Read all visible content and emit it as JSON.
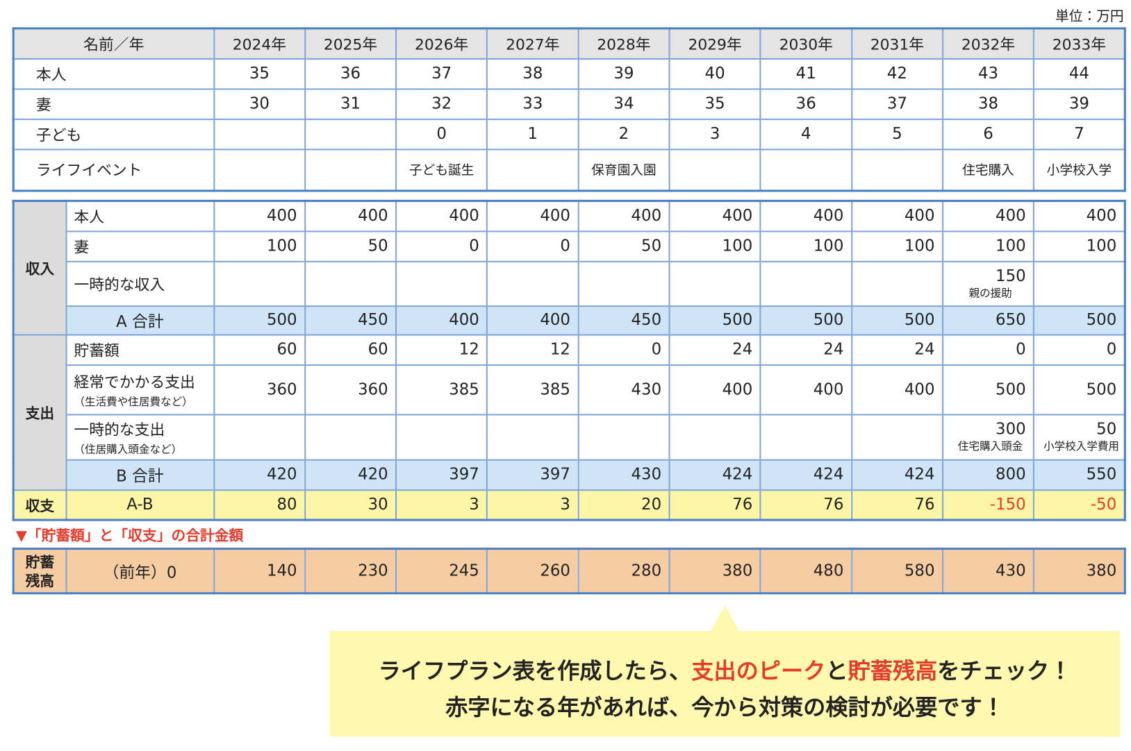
{
  "unit": "単位：万円",
  "profile_table": {
    "header": [
      "名前／年",
      "2024年",
      "2025年",
      "2026年",
      "2027年",
      "2028年",
      "2029年",
      "2030年",
      "2031年",
      "2032年",
      "2033年"
    ],
    "rows": [
      {
        "label": "本人",
        "cells": [
          35,
          36,
          37,
          38,
          39,
          40,
          41,
          42,
          43,
          44
        ]
      },
      {
        "label": "妻",
        "cells": [
          30,
          31,
          32,
          33,
          34,
          35,
          36,
          37,
          38,
          39
        ]
      },
      {
        "label": "子ども",
        "cells": [
          null,
          null,
          0,
          1,
          2,
          3,
          4,
          5,
          6,
          7
        ]
      },
      {
        "label": "ライフイベント",
        "cells": [
          null,
          null,
          "子ども誕生",
          null,
          "保育園入園",
          null,
          null,
          null,
          "住宅購入",
          "小学校入学"
        ]
      }
    ]
  },
  "finance_table": {
    "groups": [
      {
        "label": "収入",
        "rows": [
          {
            "label": "本人",
            "values": [
              400,
              400,
              400,
              400,
              400,
              400,
              400,
              400,
              400,
              400
            ]
          },
          {
            "label": "妻",
            "values": [
              100,
              50,
              0,
              0,
              50,
              100,
              100,
              100,
              100,
              100
            ]
          },
          {
            "label": "一時的な収入",
            "values": [
              null,
              null,
              null,
              null,
              null,
              null,
              null,
              null,
              150,
              null
            ],
            "notes": [
              null,
              null,
              null,
              null,
              null,
              null,
              null,
              null,
              "親の援助",
              null
            ]
          }
        ],
        "total": {
          "label": "A 合計",
          "values": [
            500,
            450,
            400,
            400,
            450,
            500,
            500,
            500,
            650,
            500
          ]
        }
      },
      {
        "label": "支出",
        "rows": [
          {
            "label": "貯蓄額",
            "values": [
              60,
              60,
              12,
              12,
              0,
              24,
              24,
              24,
              0,
              0
            ]
          },
          {
            "label": "経常でかかる支出",
            "sublabel": "（生活費や住居費など）",
            "values": [
              360,
              360,
              385,
              385,
              430,
              400,
              400,
              400,
              500,
              500
            ]
          },
          {
            "label": "一時的な支出",
            "sublabel": "（住居購入頭金など）",
            "values": [
              null,
              null,
              null,
              null,
              null,
              null,
              null,
              null,
              300,
              50
            ],
            "notes": [
              null,
              null,
              null,
              null,
              null,
              null,
              null,
              null,
              "住宅購入頭金",
              "小学校入学費用"
            ]
          }
        ],
        "total": {
          "label": "B 合計",
          "values": [
            420,
            420,
            397,
            397,
            430,
            424,
            424,
            424,
            800,
            550
          ]
        }
      }
    ],
    "balance": {
      "group_label": "収支",
      "label": "A-B",
      "values": [
        80,
        30,
        3,
        3,
        20,
        76,
        76,
        76,
        -150,
        -50
      ]
    }
  },
  "note": "「貯蓄額」と「収支」の合計金額",
  "savings_table": {
    "label_lines": [
      "貯蓄",
      "残高"
    ],
    "start": "（前年）0",
    "values": [
      140,
      230,
      245,
      260,
      280,
      380,
      480,
      580,
      430,
      380
    ]
  },
  "callout": {
    "lines": [
      [
        {
          "text": "ライフプラン表を作成したら、",
          "highlight": false
        },
        {
          "text": "支出のピーク",
          "highlight": true
        },
        {
          "text": "と",
          "highlight": false
        },
        {
          "text": "貯蓄残高",
          "highlight": true
        },
        {
          "text": "をチェック！",
          "highlight": false
        }
      ],
      [
        {
          "text": "赤字になる年があれば、今から対策の検討が必要です！",
          "highlight": false
        }
      ]
    ]
  }
}
